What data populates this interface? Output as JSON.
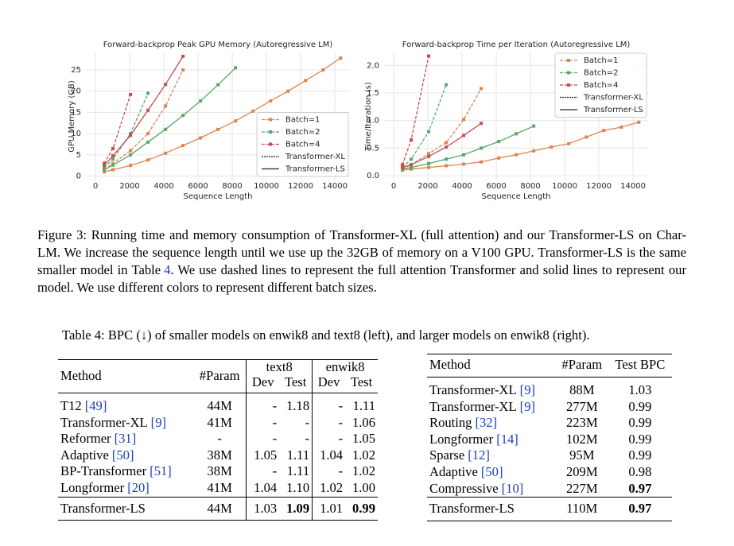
{
  "chart_data": [
    {
      "type": "line",
      "title": "Forward-backprop Peak GPU Memory (Autoregressive LM)",
      "x_label": "Sequence Length",
      "y_label": "GPU Memory (GB)",
      "xlim": [
        -560,
        14880
      ],
      "xticks": [
        0,
        2000,
        4000,
        6000,
        8000,
        10000,
        12000,
        14000
      ],
      "ylim": [
        -1.2,
        29.3
      ],
      "yticks": [
        0,
        5,
        10,
        15,
        20,
        25
      ],
      "grid": true,
      "legend": "lower right",
      "batches": [
        {
          "name": "Batch=1",
          "color": "#dd8452"
        },
        {
          "name": "Batch=2",
          "color": "#55a868"
        },
        {
          "name": "Batch=4",
          "color": "#c44e52"
        }
      ],
      "lines": [
        {
          "name": "Transformer-XL",
          "dashed": true,
          "series": [
            {
              "x": [
                512,
                1024,
                2048,
                3072,
                4096,
                5120
              ],
              "values": [
                1.5,
                3,
                6,
                10,
                16.5,
                25
              ]
            },
            {
              "x": [
                512,
                1024,
                2048,
                3072
              ],
              "values": [
                2,
                4,
                10,
                19.5
              ]
            },
            {
              "x": [
                512,
                1024,
                2048
              ],
              "values": [
                3,
                6.5,
                19.2
              ]
            }
          ]
        },
        {
          "name": "Transformer-LS",
          "dashed": false,
          "series": [
            {
              "x": [
                512,
                1024,
                2048,
                3072,
                4096,
                5120,
                6144,
                7168,
                8192,
                9216,
                10240,
                11264,
                12288,
                13312,
                14336
              ],
              "values": [
                1,
                1.5,
                2.5,
                3.8,
                5.4,
                7.2,
                9,
                11,
                13,
                15.3,
                17.7,
                20,
                22.5,
                25,
                27.8
              ]
            },
            {
              "x": [
                512,
                1024,
                2048,
                3072,
                4096,
                5120,
                6144,
                7168,
                8192
              ],
              "values": [
                1.5,
                2.6,
                5,
                8,
                11,
                14.3,
                17.7,
                21.5,
                25.5
              ]
            },
            {
              "x": [
                512,
                1024,
                2048,
                3072,
                4096,
                5120
              ],
              "values": [
                2.5,
                4.8,
                9.6,
                15.5,
                21.6,
                28.2
              ]
            }
          ]
        }
      ]
    },
    {
      "type": "line",
      "title": "Forward-backprop Time per Iteration (Autoregressive LM)",
      "x_label": "Sequence Length",
      "y_label": "Time/Iteration (s)",
      "xlim": [
        -560,
        14880
      ],
      "xticks": [
        0,
        2000,
        4000,
        6000,
        8000,
        10000,
        12000,
        14000
      ],
      "ylim": [
        -0.1,
        2.25
      ],
      "yticks": [
        {
          "value": 0,
          "label": "0.0"
        },
        {
          "value": 0.5,
          "label": "0.5"
        },
        {
          "value": 1,
          "label": "1.0"
        },
        {
          "value": 1.5,
          "label": "1.5"
        },
        {
          "value": 2,
          "label": "2.0"
        }
      ],
      "grid": true,
      "legend": "upper right",
      "batches": [
        {
          "name": "Batch=1",
          "color": "#dd8452"
        },
        {
          "name": "Batch=2",
          "color": "#55a868"
        },
        {
          "name": "Batch=4",
          "color": "#c44e52"
        }
      ],
      "lines": [
        {
          "name": "Transformer-XL",
          "dashed": true,
          "series": [
            {
              "x": [
                512,
                1024,
                2048,
                3072,
                4096,
                5120
              ],
              "values": [
                0.12,
                0.2,
                0.4,
                0.6,
                1.02,
                1.58
              ]
            },
            {
              "x": [
                512,
                1024,
                2048,
                3072
              ],
              "values": [
                0.15,
                0.3,
                0.8,
                1.65
              ]
            },
            {
              "x": [
                512,
                1024,
                2048
              ],
              "values": [
                0.2,
                0.65,
                2.17
              ]
            }
          ]
        },
        {
          "name": "Transformer-LS",
          "dashed": false,
          "series": [
            {
              "x": [
                512,
                1024,
                2048,
                3072,
                4096,
                5120,
                6144,
                7168,
                8192,
                9216,
                10240,
                11264,
                12288,
                13312,
                14336
              ],
              "values": [
                0.1,
                0.12,
                0.15,
                0.18,
                0.21,
                0.25,
                0.32,
                0.38,
                0.45,
                0.52,
                0.58,
                0.7,
                0.82,
                0.88,
                0.97
              ]
            },
            {
              "x": [
                512,
                1024,
                2048,
                3072,
                4096,
                5120,
                6144,
                7168,
                8192
              ],
              "values": [
                0.12,
                0.15,
                0.22,
                0.3,
                0.38,
                0.5,
                0.62,
                0.76,
                0.9
              ]
            },
            {
              "x": [
                512,
                1024,
                2048,
                3072,
                4096,
                5120
              ],
              "values": [
                0.15,
                0.2,
                0.35,
                0.52,
                0.73,
                0.95
              ]
            }
          ]
        }
      ]
    }
  ],
  "figure_caption": {
    "label": "Figure 3:",
    "text_1": "Running time and memory consumption of Transformer-XL (full attention) and our Transformer-LS on Char-LM. We increase the sequence length until we use up the 32GB of memory on a V100 GPU. Transformer-LS is the same smaller model in Table",
    "ref": "4",
    "text_2": ". We use dashed lines to represent the full attention Transformer and solid lines to represent our model. We use different colors to represent different batch sizes."
  },
  "table_caption": "Table 4: BPC (↓) of smaller models on enwik8 and text8 (left), and larger models on enwik8 (right).",
  "left_table": {
    "header": {
      "method": "Method",
      "param": "#Param",
      "groups": [
        "text8",
        "enwik8"
      ],
      "sub": [
        "Dev",
        "Test",
        "Dev",
        "Test"
      ]
    },
    "rows": [
      {
        "method": "T12",
        "cite": "[49]",
        "cells": [
          "44M",
          "-",
          "1.18",
          "-",
          "1.11"
        ],
        "bold": []
      },
      {
        "method": "Transformer-XL",
        "cite": "[9]",
        "cells": [
          "41M",
          "-",
          "-",
          "-",
          "1.06"
        ],
        "bold": []
      },
      {
        "method": "Reformer",
        "cite": "[31]",
        "cells": [
          "-",
          "-",
          "-",
          "-",
          "1.05"
        ],
        "bold": []
      },
      {
        "method": "Adaptive",
        "cite": "[50]",
        "cells": [
          "38M",
          "1.05",
          "1.11",
          "1.04",
          "1.02"
        ],
        "bold": []
      },
      {
        "method": "BP-Transformer",
        "cite": "[51]",
        "cells": [
          "38M",
          "-",
          "1.11",
          "-",
          "1.02"
        ],
        "bold": []
      },
      {
        "method": "Longformer",
        "cite": "[20]",
        "cells": [
          "41M",
          "1.04",
          "1.10",
          "1.02",
          "1.00"
        ],
        "bold": []
      },
      {
        "method": "Transformer-LS",
        "cells": [
          "44M",
          "1.03",
          "1.09",
          "1.01",
          "0.99"
        ],
        "bold": [
          2,
          4
        ]
      }
    ]
  },
  "right_table": {
    "header": [
      "Method",
      "#Param",
      "Test BPC"
    ],
    "rows": [
      {
        "method": "Transformer-XL",
        "cite": "[9]",
        "cells": [
          "88M",
          "1.03"
        ],
        "bold": []
      },
      {
        "method": "Transformer-XL",
        "cite": "[9]",
        "cells": [
          "277M",
          "0.99"
        ],
        "bold": []
      },
      {
        "method": "Routing",
        "cite": "[32]",
        "cells": [
          "223M",
          "0.99"
        ],
        "bold": []
      },
      {
        "method": "Longformer",
        "cite": "[14]",
        "cells": [
          "102M",
          "0.99"
        ],
        "bold": []
      },
      {
        "method": "Sparse",
        "cite": "[12]",
        "cells": [
          "95M",
          "0.99"
        ],
        "bold": []
      },
      {
        "method": "Adaptive",
        "cite": "[50]",
        "cells": [
          "209M",
          "0.98"
        ],
        "bold": []
      },
      {
        "method": "Compressive",
        "cite": "[10]",
        "cells": [
          "227M",
          "0.97"
        ],
        "bold": [
          1
        ]
      },
      {
        "method": "Transformer-LS",
        "cells": [
          "110M",
          "0.97"
        ],
        "bold": [
          1
        ]
      }
    ]
  }
}
